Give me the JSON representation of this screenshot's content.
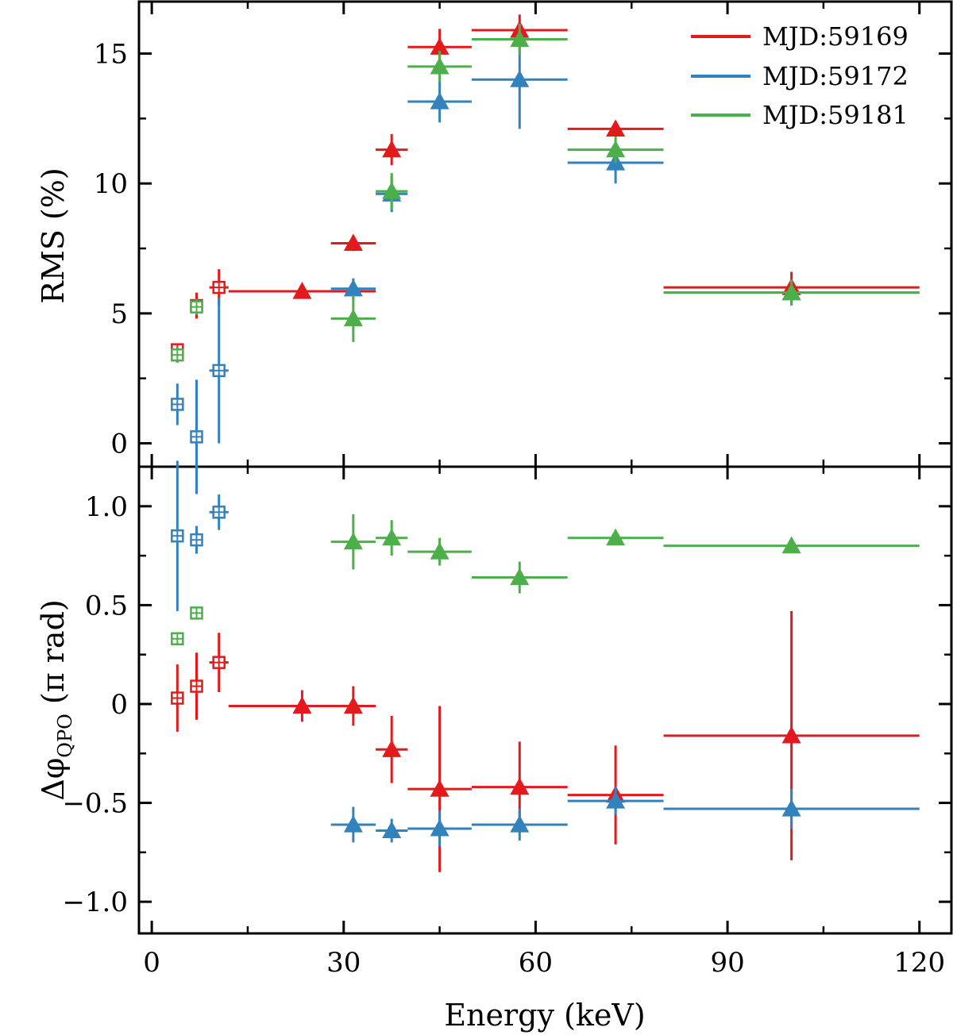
{
  "chart_data": {
    "type": "scatter",
    "x_axis": {
      "label": "Energy (keV)",
      "range": [
        -2,
        125
      ],
      "ticks": [
        0,
        30,
        60,
        90,
        120
      ],
      "tick_labels": [
        "0",
        "30",
        "60",
        "90",
        "120"
      ]
    },
    "legend": {
      "placement": "top-right",
      "entries": [
        {
          "name": "MJD:59169",
          "color": "#e31a1c"
        },
        {
          "name": "MJD:59172",
          "color": "#3182bd"
        },
        {
          "name": "MJD:59181",
          "color": "#4daf4a"
        }
      ]
    },
    "panels": [
      {
        "id": "rms",
        "ylabel": "RMS (%)",
        "ylim": [
          -0.9,
          17.0
        ],
        "yticks": [
          0,
          5,
          10,
          15
        ],
        "ytick_labels": [
          "0",
          "5",
          "10",
          "15"
        ],
        "series": [
          {
            "name": "MJD:59169",
            "color": "#e31a1c",
            "points": [
              {
                "x": 4.0,
                "xerr": 1.0,
                "y": 3.6,
                "yerr": 0.2,
                "marker": "square"
              },
              {
                "x": 7.0,
                "xerr": 1.0,
                "y": 5.3,
                "yerr": 0.5,
                "marker": "square"
              },
              {
                "x": 10.5,
                "xerr": 1.5,
                "y": 6.0,
                "yerr": 0.7,
                "marker": "square"
              },
              {
                "x": 23.5,
                "xerr": 11.5,
                "y": 5.85,
                "yerr": 0.1,
                "marker": "triangle"
              },
              {
                "x": 31.5,
                "xerr": 3.5,
                "y": 7.7,
                "yerr": 0.3,
                "marker": "triangle"
              },
              {
                "x": 37.5,
                "xerr": 2.5,
                "y": 11.3,
                "yerr": 0.6,
                "marker": "triangle"
              },
              {
                "x": 45.0,
                "xerr": 5.0,
                "y": 15.25,
                "yerr": 0.7,
                "marker": "triangle"
              },
              {
                "x": 57.5,
                "xerr": 7.5,
                "y": 15.9,
                "yerr": 0.6,
                "marker": "triangle"
              },
              {
                "x": 72.5,
                "xerr": 7.5,
                "y": 12.1,
                "yerr": 0.3,
                "marker": "triangle"
              },
              {
                "x": 100.0,
                "xerr": 20.0,
                "y": 6.0,
                "yerr": 0.6,
                "marker": "triangle"
              }
            ]
          },
          {
            "name": "MJD:59172",
            "color": "#3182bd",
            "points": [
              {
                "x": 4.0,
                "xerr": 1.0,
                "y": 1.5,
                "yerr": 0.8,
                "marker": "square"
              },
              {
                "x": 7.0,
                "xerr": 1.0,
                "y": 0.25,
                "yerr": 2.2,
                "marker": "square"
              },
              {
                "x": 10.5,
                "xerr": 1.5,
                "y": 2.8,
                "yerr": 2.8,
                "marker": "square"
              },
              {
                "x": 31.5,
                "xerr": 3.5,
                "y": 5.95,
                "yerr": 0.4,
                "marker": "triangle"
              },
              {
                "x": 37.5,
                "xerr": 2.5,
                "y": 9.6,
                "yerr": 0.7,
                "marker": "triangle"
              },
              {
                "x": 45.0,
                "xerr": 5.0,
                "y": 13.15,
                "yerr": 0.8,
                "marker": "triangle"
              },
              {
                "x": 57.5,
                "xerr": 7.5,
                "y": 14.0,
                "yerr": 1.9,
                "marker": "triangle"
              },
              {
                "x": 72.5,
                "xerr": 7.5,
                "y": 10.8,
                "yerr": 0.8,
                "marker": "triangle"
              },
              {
                "x": 100.0,
                "xerr": 20.0,
                "y": 5.8,
                "yerr": 0.5,
                "marker": "triangle"
              }
            ]
          },
          {
            "name": "MJD:59181",
            "color": "#4daf4a",
            "points": [
              {
                "x": 4.0,
                "xerr": 1.0,
                "y": 3.4,
                "yerr": 0.3,
                "marker": "square"
              },
              {
                "x": 7.0,
                "xerr": 1.0,
                "y": 5.25,
                "yerr": 0.3,
                "marker": "square"
              },
              {
                "x": 31.5,
                "xerr": 3.5,
                "y": 4.8,
                "yerr": 0.9,
                "marker": "triangle"
              },
              {
                "x": 37.5,
                "xerr": 2.5,
                "y": 9.7,
                "yerr": 0.7,
                "marker": "triangle"
              },
              {
                "x": 45.0,
                "xerr": 5.0,
                "y": 14.5,
                "yerr": 0.6,
                "marker": "triangle"
              },
              {
                "x": 57.5,
                "xerr": 7.5,
                "y": 15.55,
                "yerr": 0.6,
                "marker": "triangle"
              },
              {
                "x": 72.5,
                "xerr": 7.5,
                "y": 11.3,
                "yerr": 0.5,
                "marker": "triangle"
              },
              {
                "x": 100.0,
                "xerr": 20.0,
                "y": 5.8,
                "yerr": 0.5,
                "marker": "triangle"
              }
            ]
          }
        ]
      },
      {
        "id": "phase",
        "ylabel": "Δφ",
        "ylabel_sub": "QPO",
        "ylabel_tail": " (π rad)",
        "ylim": [
          -1.16,
          1.2
        ],
        "yticks": [
          -1.0,
          -0.5,
          0,
          0.5,
          1.0
        ],
        "ytick_labels": [
          "−1.0",
          "−0.5",
          "0",
          "0.5",
          "1.0"
        ],
        "series": [
          {
            "name": "MJD:59169",
            "color": "#e31a1c",
            "points": [
              {
                "x": 4.0,
                "xerr": 1.0,
                "y": 0.03,
                "yerr": 0.17,
                "marker": "square"
              },
              {
                "x": 7.0,
                "xerr": 1.0,
                "y": 0.09,
                "yerr": 0.17,
                "marker": "square"
              },
              {
                "x": 10.5,
                "xerr": 1.5,
                "y": 0.21,
                "yerr": 0.15,
                "marker": "square"
              },
              {
                "x": 23.5,
                "xerr": 11.5,
                "y": -0.01,
                "yerr": 0.08,
                "marker": "triangle"
              },
              {
                "x": 31.5,
                "xerr": 3.5,
                "y": -0.01,
                "yerr": 0.1,
                "marker": "triangle"
              },
              {
                "x": 37.5,
                "xerr": 2.5,
                "y": -0.23,
                "yerr": 0.17,
                "marker": "triangle"
              },
              {
                "x": 45.0,
                "xerr": 5.0,
                "y": -0.43,
                "yerr": 0.42,
                "marker": "triangle"
              },
              {
                "x": 57.5,
                "xerr": 7.5,
                "y": -0.42,
                "yerr": 0.23,
                "marker": "triangle"
              },
              {
                "x": 72.5,
                "xerr": 7.5,
                "y": -0.46,
                "yerr": 0.25,
                "marker": "triangle"
              },
              {
                "x": 100.0,
                "xerr": 20.0,
                "y": -0.16,
                "yerr": 0.63,
                "marker": "triangle"
              }
            ]
          },
          {
            "name": "MJD:59172",
            "color": "#3182bd",
            "points": [
              {
                "x": 4.0,
                "xerr": 1.0,
                "y": 0.85,
                "yerr": 0.38,
                "marker": "square"
              },
              {
                "x": 7.0,
                "xerr": 1.0,
                "y": 0.83,
                "yerr": 0.07,
                "marker": "square"
              },
              {
                "x": 10.5,
                "xerr": 1.5,
                "y": 0.97,
                "yerr": 0.09,
                "marker": "square"
              },
              {
                "x": 31.5,
                "xerr": 3.5,
                "y": -0.61,
                "yerr": 0.09,
                "marker": "triangle"
              },
              {
                "x": 37.5,
                "xerr": 2.5,
                "y": -0.64,
                "yerr": 0.06,
                "marker": "triangle"
              },
              {
                "x": 45.0,
                "xerr": 5.0,
                "y": -0.63,
                "yerr": 0.09,
                "marker": "triangle"
              },
              {
                "x": 57.5,
                "xerr": 7.5,
                "y": -0.61,
                "yerr": 0.08,
                "marker": "triangle"
              },
              {
                "x": 72.5,
                "xerr": 7.5,
                "y": -0.49,
                "yerr": 0.07,
                "marker": "triangle"
              },
              {
                "x": 100.0,
                "xerr": 20.0,
                "y": -0.53,
                "yerr": 0.1,
                "marker": "triangle"
              }
            ]
          },
          {
            "name": "MJD:59181",
            "color": "#4daf4a",
            "points": [
              {
                "x": 4.0,
                "xerr": 1.0,
                "y": 0.33,
                "yerr": 0.03,
                "marker": "square"
              },
              {
                "x": 7.0,
                "xerr": 1.0,
                "y": 0.46,
                "yerr": 0.03,
                "marker": "square"
              },
              {
                "x": 31.5,
                "xerr": 3.5,
                "y": 0.82,
                "yerr": 0.14,
                "marker": "triangle"
              },
              {
                "x": 37.5,
                "xerr": 2.5,
                "y": 0.84,
                "yerr": 0.09,
                "marker": "triangle"
              },
              {
                "x": 45.0,
                "xerr": 5.0,
                "y": 0.77,
                "yerr": 0.07,
                "marker": "triangle"
              },
              {
                "x": 57.5,
                "xerr": 7.5,
                "y": 0.64,
                "yerr": 0.08,
                "marker": "triangle"
              },
              {
                "x": 72.5,
                "xerr": 7.5,
                "y": 0.84,
                "yerr": 0.03,
                "marker": "triangle"
              },
              {
                "x": 100.0,
                "xerr": 20.0,
                "y": 0.8,
                "yerr": 0.03,
                "marker": "triangle"
              }
            ]
          }
        ]
      }
    ]
  }
}
